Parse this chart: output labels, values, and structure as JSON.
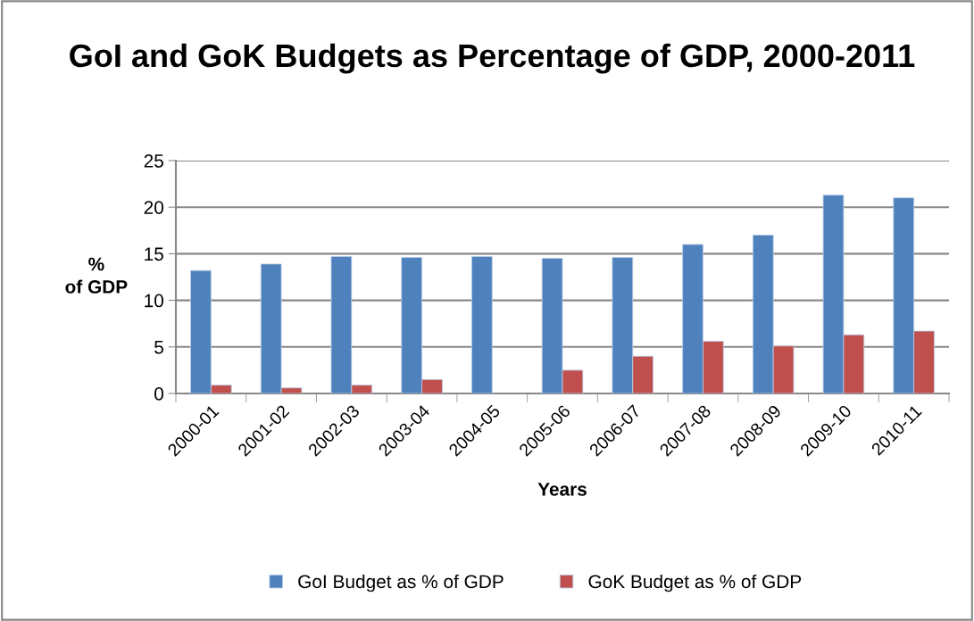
{
  "chart_data": {
    "type": "bar",
    "title": "GoI and GoK Budgets as Percentage of GDP, 2000-2011",
    "xlabel": "Years",
    "ylabel": "%\nof GDP",
    "categories": [
      "2000-01",
      "2001-02",
      "2002-03",
      "2003-04",
      "2004-05",
      "2005-06",
      "2006-07",
      "2007-08",
      "2008-09",
      "2009-10",
      "2010-11"
    ],
    "series": [
      {
        "name": "GoI Budget as % of GDP",
        "color": "#4f81bd",
        "values": [
          13.2,
          13.9,
          14.7,
          14.6,
          14.7,
          14.5,
          14.6,
          16.0,
          17.0,
          21.3,
          21.0
        ]
      },
      {
        "name": "GoK Budget as % of GDP",
        "color": "#c0504d",
        "values": [
          0.9,
          0.6,
          0.9,
          1.5,
          null,
          2.5,
          4.0,
          5.6,
          5.1,
          6.3,
          6.7
        ]
      }
    ],
    "ylim": [
      0,
      25
    ],
    "yticks": [
      0,
      5,
      10,
      15,
      20,
      25
    ],
    "grid": "y",
    "legend": "bottom"
  }
}
